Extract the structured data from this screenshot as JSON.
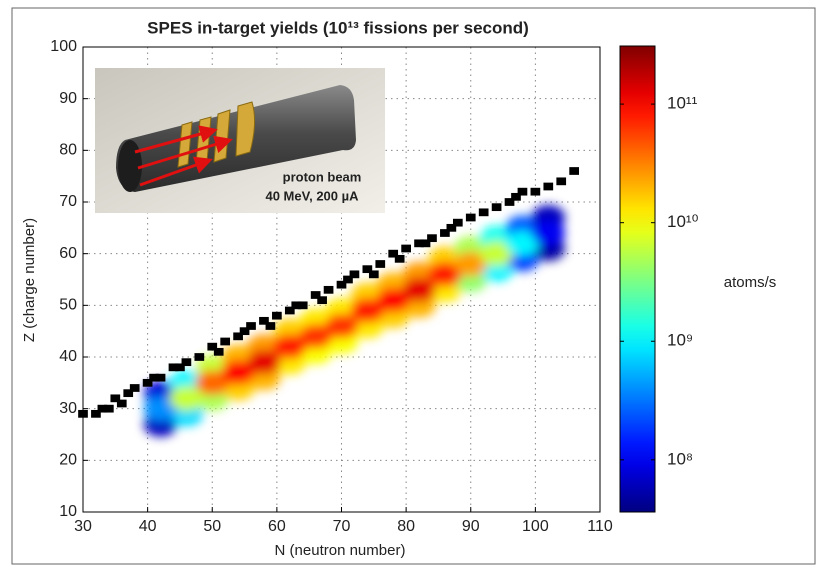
{
  "chart_data": {
    "type": "heatmap",
    "title": "SPES in-target yields (10¹³ fissions per second)",
    "x_label": "N (neutron number)",
    "y_label": "Z (charge number)",
    "colorbar_label": "atoms/s",
    "annotations": [
      "proton beam",
      "40 MeV, 200 µA"
    ],
    "xlim": [
      30,
      110
    ],
    "xticks": [
      30,
      40,
      50,
      60,
      70,
      80,
      90,
      100,
      110
    ],
    "ylim": [
      10,
      100
    ],
    "yticks": [
      10,
      20,
      30,
      40,
      50,
      60,
      70,
      80,
      90,
      100
    ],
    "grid": true,
    "colormap": "jet",
    "clim": [
      7.56,
      11.49
    ],
    "cticks": [
      {
        "value": 8,
        "label": "10⁸"
      },
      {
        "value": 9,
        "label": "10⁹"
      },
      {
        "value": 10,
        "label": "10¹⁰"
      },
      {
        "value": 11,
        "label": "10¹¹"
      }
    ],
    "stable": {
      "color": "#000000",
      "x": [
        30,
        32,
        33,
        34,
        35,
        36,
        37,
        38,
        40,
        41,
        42,
        44,
        45,
        46,
        48,
        50,
        51,
        52,
        54,
        55,
        56,
        58,
        59,
        60,
        62,
        63,
        64,
        66,
        67,
        68,
        70,
        71,
        72,
        74,
        75,
        76,
        78,
        79,
        80,
        82,
        83,
        84,
        86,
        87,
        88,
        90,
        92,
        94,
        96,
        97,
        98,
        100,
        102,
        104,
        106
      ],
      "y": [
        29,
        29,
        30,
        30,
        32,
        31,
        33,
        34,
        35,
        36,
        36,
        38,
        38,
        39,
        40,
        42,
        41,
        43,
        44,
        45,
        46,
        47,
        46,
        48,
        49,
        50,
        50,
        52,
        51,
        53,
        54,
        55,
        56,
        57,
        56,
        58,
        60,
        59,
        61,
        62,
        62,
        63,
        64,
        65,
        66,
        67,
        68,
        69,
        70,
        71,
        72,
        72,
        73,
        74,
        76
      ]
    },
    "yield": {
      "x": [
        42,
        46,
        50,
        54,
        58,
        62,
        66,
        70,
        74,
        78,
        82,
        86,
        90,
        94,
        98,
        102,
        42,
        46,
        50,
        54,
        58,
        62,
        66,
        70,
        74,
        78,
        82,
        86,
        90,
        94,
        98,
        102,
        42,
        46,
        50,
        54,
        58,
        62,
        66,
        70,
        74,
        78,
        82,
        86,
        90,
        94,
        98,
        102
      ],
      "y": [
        27,
        29,
        32,
        34,
        36,
        39,
        41,
        43,
        46,
        48,
        50,
        53,
        55,
        57,
        59,
        61,
        33,
        35,
        38,
        40,
        42,
        45,
        47,
        49,
        52,
        54,
        56,
        59,
        61,
        63,
        65,
        67,
        30,
        32,
        35,
        37,
        39,
        42,
        44,
        46,
        49,
        51,
        53,
        56,
        58,
        60,
        62,
        64
      ],
      "z": [
        7.8,
        8.9,
        9.7,
        10.2,
        10.3,
        10.1,
        10.0,
        10.0,
        10.1,
        10.2,
        10.3,
        10.1,
        9.6,
        9.0,
        8.3,
        7.7,
        7.9,
        9.0,
        9.8,
        10.3,
        10.4,
        10.2,
        10.1,
        10.1,
        10.2,
        10.3,
        10.4,
        10.2,
        9.7,
        9.1,
        8.4,
        7.8,
        8.6,
        9.8,
        10.6,
        11.0,
        11.1,
        10.9,
        10.8,
        10.8,
        10.9,
        11.0,
        11.1,
        10.9,
        10.4,
        9.8,
        9.0,
        8.0
      ]
    }
  }
}
